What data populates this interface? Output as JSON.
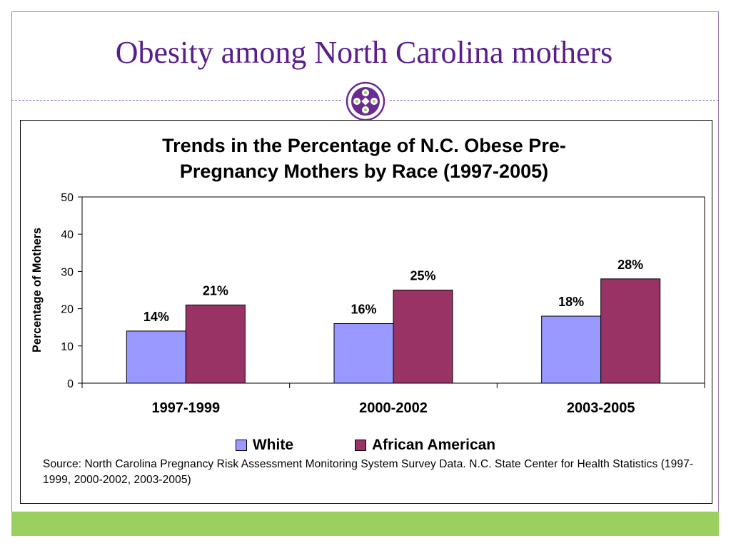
{
  "slide": {
    "title": "Obesity among North Carolina mothers"
  },
  "chart_data": {
    "type": "bar",
    "title": "Trends in the Percentage of N.C. Obese Pre-Pregnancy Mothers by Race (1997-2005)",
    "title_lines": [
      "Trends in the Percentage of N.C. Obese Pre-",
      "Pregnancy Mothers by Race (1997-2005)"
    ],
    "categories": [
      "1997-1999",
      "2000-2002",
      "2003-2005"
    ],
    "series": [
      {
        "name": "White",
        "values": [
          14,
          16,
          18
        ],
        "labels": [
          "14%",
          "16%",
          "18%"
        ],
        "color": "#9999ff"
      },
      {
        "name": "African American",
        "values": [
          21,
          25,
          28
        ],
        "labels": [
          "21%",
          "25%",
          "28%"
        ],
        "color": "#993366"
      }
    ],
    "ylabel": "Percentage of Mothers",
    "xlabel": "",
    "ylim": [
      0,
      50
    ],
    "yticks": [
      0,
      10,
      20,
      30,
      40,
      50
    ],
    "grid": false,
    "legend": "bottom"
  },
  "source": "Source: North Carolina Pregnancy Risk Assessment Monitoring System Survey Data.  N.C. State Center for Health Statistics (1997-1999, 2000-2002, 2003-2005)",
  "colors": {
    "title": "#5a1e8c",
    "frame": "#9b7fb8",
    "band": "#9bcf5f"
  }
}
